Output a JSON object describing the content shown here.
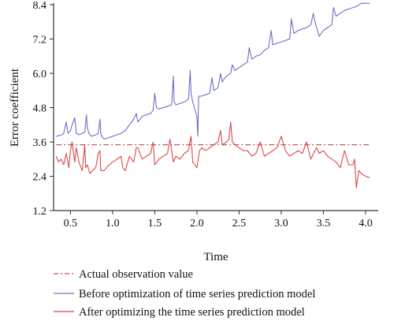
{
  "chart_data": {
    "type": "line",
    "title": "",
    "xlabel": "Time",
    "ylabel": "Error coefficient",
    "xlim": [
      0.3,
      4.15
    ],
    "ylim": [
      1.2,
      8.4
    ],
    "x_ticks": [
      0.5,
      1.0,
      1.5,
      2.0,
      2.5,
      3.0,
      3.5,
      4.0
    ],
    "x_tick_labels": [
      "0.5",
      "1.0",
      "1.5",
      "2.0",
      "2.5",
      "3.0",
      "3.5",
      "4.0"
    ],
    "y_ticks": [
      1.2,
      2.4,
      3.6,
      4.8,
      6.0,
      7.2,
      8.4
    ],
    "y_tick_labels": [
      "1.2",
      "2.4",
      "3.6",
      "4.8",
      "6.0",
      "7.2",
      "8.4"
    ],
    "grid": false,
    "legend_position": "bottom",
    "series": [
      {
        "name": "Actual observation value",
        "color": "#c0504d",
        "style": "dashdot",
        "x": [
          0.33,
          4.05
        ],
        "y": [
          3.5,
          3.5
        ]
      },
      {
        "name": "Before optimization of time series prediction model",
        "color": "#6c6fc6",
        "style": "solid",
        "x": [
          0.33,
          0.4,
          0.42,
          0.45,
          0.47,
          0.5,
          0.52,
          0.55,
          0.56,
          0.57,
          0.6,
          0.64,
          0.67,
          0.69,
          0.7,
          0.72,
          0.75,
          0.8,
          0.83,
          0.85,
          0.86,
          0.87,
          0.9,
          0.95,
          1.0,
          1.05,
          1.1,
          1.15,
          1.2,
          1.25,
          1.28,
          1.3,
          1.33,
          1.35,
          1.4,
          1.45,
          1.48,
          1.5,
          1.52,
          1.55,
          1.6,
          1.65,
          1.7,
          1.72,
          1.73,
          1.75,
          1.8,
          1.85,
          1.9,
          1.92,
          1.93,
          1.95,
          2.0,
          2.01,
          2.02,
          2.05,
          2.1,
          2.15,
          2.18,
          2.2,
          2.25,
          2.28,
          2.3,
          2.32,
          2.35,
          2.4,
          2.42,
          2.45,
          2.5,
          2.55,
          2.6,
          2.62,
          2.65,
          2.7,
          2.75,
          2.8,
          2.85,
          2.88,
          2.9,
          2.95,
          3.0,
          3.05,
          3.1,
          3.12,
          3.15,
          3.2,
          3.25,
          3.3,
          3.35,
          3.38,
          3.4,
          3.45,
          3.5,
          3.55,
          3.6,
          3.62,
          3.65,
          3.7,
          3.75,
          3.8,
          3.85,
          3.9,
          3.95,
          4.0,
          4.05
        ],
        "y": [
          3.8,
          3.85,
          3.9,
          4.3,
          3.9,
          4.0,
          4.2,
          4.45,
          4.2,
          3.9,
          3.85,
          3.9,
          3.95,
          4.55,
          4.1,
          3.9,
          3.8,
          3.85,
          3.9,
          4.4,
          3.9,
          3.8,
          3.7,
          3.75,
          3.8,
          3.85,
          3.9,
          4.0,
          4.2,
          4.4,
          4.6,
          4.3,
          4.4,
          4.5,
          4.55,
          4.6,
          4.7,
          5.3,
          4.8,
          4.75,
          4.8,
          4.85,
          4.9,
          5.9,
          5.0,
          4.9,
          4.95,
          5.0,
          5.1,
          6.1,
          5.3,
          5.0,
          4.5,
          3.8,
          5.2,
          5.2,
          5.25,
          5.3,
          5.85,
          5.4,
          5.5,
          6.0,
          5.7,
          5.8,
          5.9,
          6.0,
          6.3,
          6.1,
          6.2,
          6.3,
          6.4,
          6.9,
          6.5,
          6.6,
          6.65,
          6.8,
          6.9,
          7.5,
          7.0,
          7.05,
          7.1,
          7.15,
          7.2,
          7.9,
          7.4,
          7.5,
          7.55,
          7.6,
          7.7,
          8.1,
          7.8,
          7.3,
          7.5,
          7.6,
          7.7,
          8.3,
          8.0,
          8.1,
          8.2,
          8.25,
          8.3,
          8.35,
          8.45,
          8.45,
          8.45
        ]
      },
      {
        "name": "After optimizing the time series prediction model",
        "color": "#e0464a",
        "style": "solid",
        "x": [
          0.33,
          0.36,
          0.39,
          0.42,
          0.45,
          0.48,
          0.5,
          0.52,
          0.55,
          0.57,
          0.6,
          0.64,
          0.67,
          0.68,
          0.7,
          0.73,
          0.76,
          0.8,
          0.83,
          0.85,
          0.86,
          0.88,
          0.9,
          0.93,
          0.96,
          1.0,
          1.05,
          1.1,
          1.12,
          1.15,
          1.2,
          1.25,
          1.28,
          1.3,
          1.35,
          1.4,
          1.45,
          1.48,
          1.5,
          1.55,
          1.6,
          1.65,
          1.68,
          1.7,
          1.72,
          1.75,
          1.8,
          1.85,
          1.9,
          1.93,
          1.95,
          2.0,
          2.03,
          2.06,
          2.1,
          2.15,
          2.2,
          2.25,
          2.28,
          2.3,
          2.35,
          2.38,
          2.4,
          2.42,
          2.45,
          2.5,
          2.55,
          2.6,
          2.65,
          2.7,
          2.75,
          2.8,
          2.85,
          2.9,
          2.95,
          3.0,
          3.05,
          3.1,
          3.15,
          3.2,
          3.25,
          3.3,
          3.35,
          3.4,
          3.42,
          3.45,
          3.5,
          3.55,
          3.6,
          3.65,
          3.7,
          3.75,
          3.8,
          3.85,
          3.87,
          3.89,
          3.92,
          3.95,
          4.0,
          4.05
        ],
        "y": [
          3.1,
          2.9,
          3.0,
          2.8,
          3.2,
          2.7,
          3.3,
          3.6,
          2.9,
          3.4,
          2.9,
          2.6,
          3.5,
          2.7,
          2.8,
          2.5,
          2.6,
          2.7,
          3.2,
          3.3,
          2.6,
          2.6,
          2.6,
          2.7,
          2.8,
          2.9,
          3.0,
          3.1,
          2.7,
          2.6,
          3.1,
          2.9,
          3.4,
          3.4,
          3.0,
          3.1,
          3.2,
          3.6,
          2.8,
          3.0,
          3.1,
          3.2,
          3.7,
          3.3,
          2.9,
          3.1,
          3.0,
          3.2,
          3.3,
          3.8,
          2.9,
          2.7,
          3.3,
          3.4,
          3.3,
          3.4,
          3.5,
          3.6,
          4.0,
          3.5,
          3.6,
          3.7,
          4.3,
          3.6,
          3.5,
          3.4,
          3.3,
          3.3,
          3.1,
          3.2,
          3.6,
          3.1,
          3.2,
          3.3,
          3.4,
          3.8,
          3.3,
          3.1,
          3.2,
          3.3,
          3.2,
          3.6,
          3.0,
          3.3,
          3.4,
          3.2,
          3.3,
          3.1,
          3.0,
          2.9,
          2.7,
          3.3,
          2.8,
          2.8,
          3.0,
          2.0,
          2.6,
          2.5,
          2.4,
          2.35
        ]
      }
    ]
  }
}
